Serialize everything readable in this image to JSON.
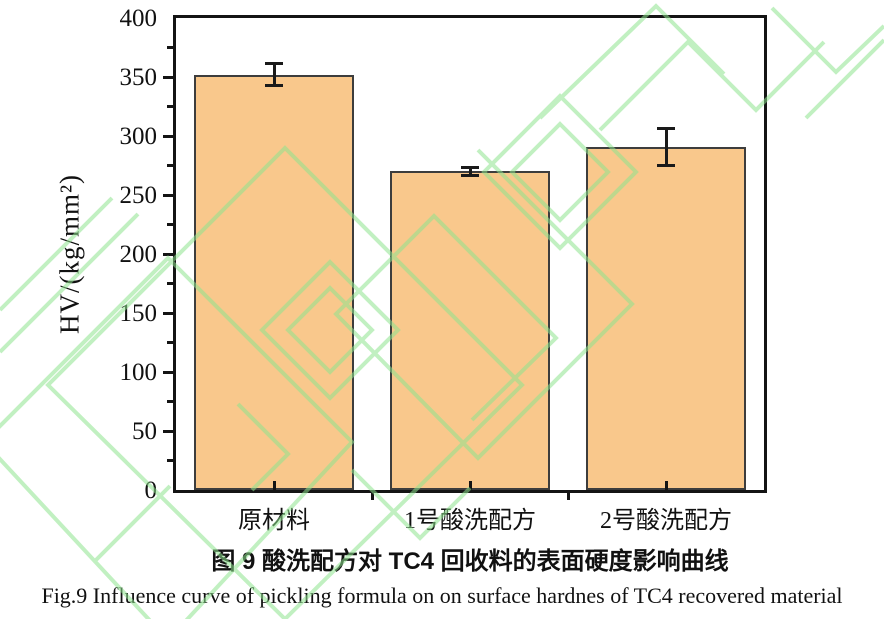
{
  "figure": {
    "caption_cn": "图 9 酸洗配方对 TC4 回收料的表面硬度影响曲线",
    "caption_en": "Fig.9 Influence curve of pickling formula on on surface hardnes of TC4 recovered material"
  },
  "chart_data": {
    "type": "bar",
    "categories": [
      "原材料",
      "1号酸洗配方",
      "2号酸洗配方"
    ],
    "values": [
      352,
      270,
      291
    ],
    "error_bars": [
      10,
      4,
      16
    ],
    "title": "图 9 酸洗配方对 TC4 回收料的表面硬度影响曲线",
    "xlabel": "",
    "ylabel": "HV/(kg/mm²)",
    "ylim": [
      0,
      400
    ],
    "yticks": [
      0,
      50,
      100,
      150,
      200,
      250,
      300,
      350,
      400
    ],
    "ytick_minor_step": 25,
    "grid": false,
    "legend": false,
    "bar_color": "#F9C88C",
    "bar_border_color": "#3d3d3d",
    "axis_color": "#141414",
    "error_bar_color": "#1a1a1a",
    "watermark_color": "#8FE48F"
  }
}
